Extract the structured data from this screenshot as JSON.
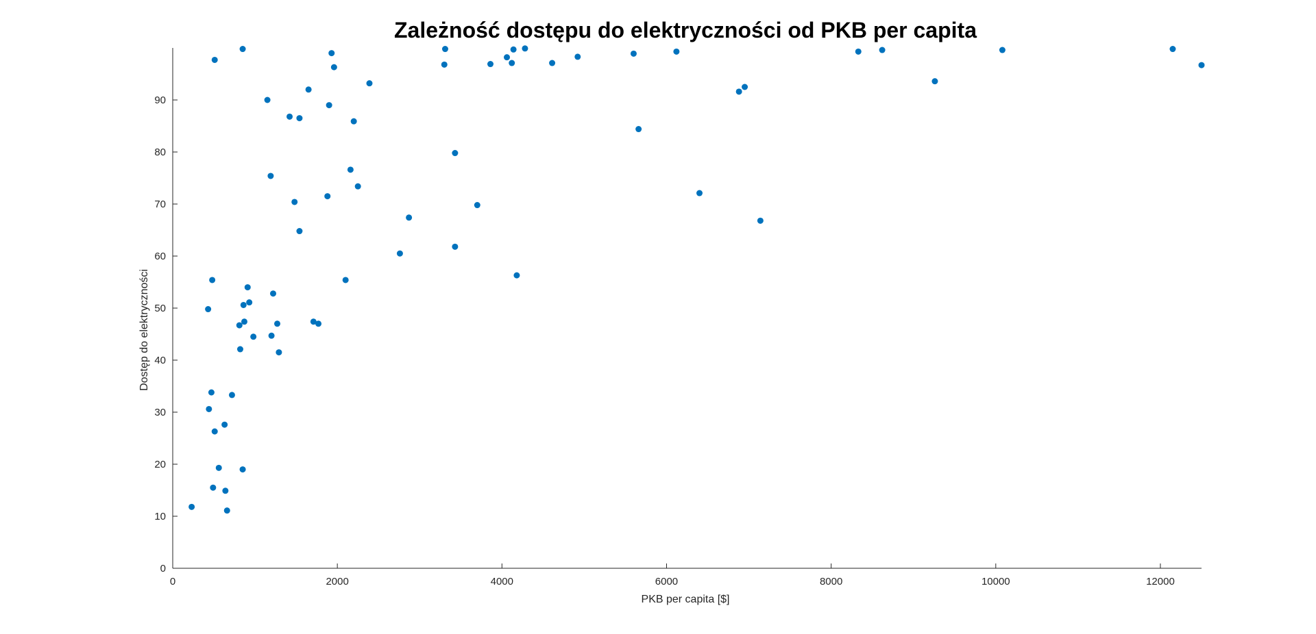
{
  "chart_data": {
    "type": "scatter",
    "title": "Zależność dostępu do elektryczności od PKB per capita",
    "xlabel": "PKB per capita [$]",
    "ylabel": "Dostęp do elektryczności",
    "xlim": [
      0,
      12500
    ],
    "ylim": [
      0,
      100
    ],
    "xticks": [
      0,
      2000,
      4000,
      6000,
      8000,
      10000,
      12000
    ],
    "yticks": [
      0,
      10,
      20,
      30,
      40,
      50,
      60,
      70,
      80,
      90
    ],
    "grid": false,
    "marker_color": "#0072BD",
    "points": [
      [
        230,
        11.8
      ],
      [
        490,
        15.5
      ],
      [
        640,
        14.9
      ],
      [
        660,
        11.1
      ],
      [
        560,
        19.3
      ],
      [
        850,
        19.0
      ],
      [
        510,
        26.3
      ],
      [
        630,
        27.6
      ],
      [
        440,
        30.6
      ],
      [
        470,
        33.8
      ],
      [
        720,
        33.3
      ],
      [
        820,
        42.1
      ],
      [
        810,
        46.7
      ],
      [
        870,
        47.4
      ],
      [
        980,
        44.5
      ],
      [
        1200,
        44.7
      ],
      [
        1270,
        47.0
      ],
      [
        1290,
        41.5
      ],
      [
        1710,
        47.4
      ],
      [
        1770,
        47.0
      ],
      [
        430,
        49.8
      ],
      [
        860,
        50.6
      ],
      [
        930,
        51.1
      ],
      [
        910,
        54.0
      ],
      [
        480,
        55.4
      ],
      [
        1220,
        52.8
      ],
      [
        2100,
        55.4
      ],
      [
        1540,
        64.8
      ],
      [
        1480,
        70.4
      ],
      [
        1190,
        75.4
      ],
      [
        1880,
        71.5
      ],
      [
        2160,
        76.6
      ],
      [
        2250,
        73.4
      ],
      [
        2760,
        60.5
      ],
      [
        2870,
        67.4
      ],
      [
        3430,
        61.8
      ],
      [
        3700,
        69.8
      ],
      [
        3430,
        79.8
      ],
      [
        4180,
        56.3
      ],
      [
        1420,
        86.8
      ],
      [
        1540,
        86.5
      ],
      [
        1150,
        90.0
      ],
      [
        1650,
        92.0
      ],
      [
        1900,
        89.0
      ],
      [
        2200,
        85.9
      ],
      [
        2390,
        93.2
      ],
      [
        1960,
        96.3
      ],
      [
        1930,
        99.0
      ],
      [
        510,
        97.7
      ],
      [
        850,
        99.8
      ],
      [
        3300,
        96.8
      ],
      [
        3310,
        99.8
      ],
      [
        3860,
        96.9
      ],
      [
        4060,
        98.2
      ],
      [
        4120,
        97.1
      ],
      [
        4140,
        99.7
      ],
      [
        4280,
        99.9
      ],
      [
        4610,
        97.1
      ],
      [
        4920,
        98.3
      ],
      [
        5600,
        98.9
      ],
      [
        5660,
        84.4
      ],
      [
        6120,
        99.3
      ],
      [
        6400,
        72.1
      ],
      [
        6880,
        91.6
      ],
      [
        6950,
        92.5
      ],
      [
        7140,
        66.8
      ],
      [
        8330,
        99.3
      ],
      [
        8620,
        99.6
      ],
      [
        9260,
        93.6
      ],
      [
        10080,
        99.6
      ],
      [
        12150,
        99.8
      ],
      [
        12500,
        96.7
      ]
    ]
  }
}
